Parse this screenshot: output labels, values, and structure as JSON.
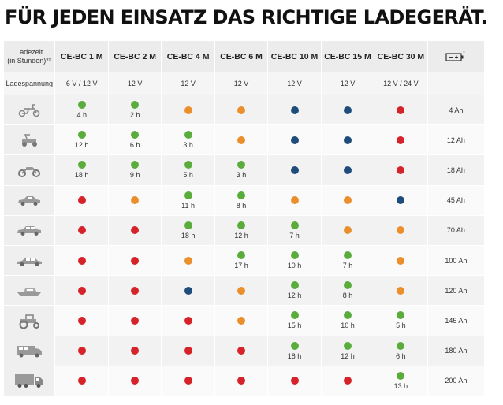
{
  "title": "FÜR JEDEN EINSATZ DAS RICHTIGE LADEGERÄT.",
  "header": {
    "corner_line1": "Ladezeit",
    "corner_line2": "(in Stunden)**",
    "models": [
      "CE-BC 1 M",
      "CE-BC 2 M",
      "CE-BC 4 M",
      "CE-BC 6 M",
      "CE-BC 10 M",
      "CE-BC 15 M",
      "CE-BC 30 M"
    ],
    "battery_icon": "battery-icon"
  },
  "voltage_row": {
    "label": "Ladespannung",
    "values": [
      "6 V / 12 V",
      "12 V",
      "12 V",
      "12 V",
      "12 V",
      "12 V",
      "12 V / 24 V"
    ]
  },
  "colors": {
    "green": "#5aad3c",
    "orange": "#eb8f2d",
    "blue": "#1e4d7c",
    "red": "#d6232a"
  },
  "rows": [
    {
      "icon": "scooter-icon",
      "capacity": "4 Ah",
      "cells": [
        {
          "c": "green",
          "t": "4 h"
        },
        {
          "c": "green",
          "t": "2 h"
        },
        {
          "c": "orange",
          "t": ""
        },
        {
          "c": "orange",
          "t": ""
        },
        {
          "c": "blue",
          "t": ""
        },
        {
          "c": "blue",
          "t": ""
        },
        {
          "c": "red",
          "t": ""
        }
      ]
    },
    {
      "icon": "lawnmower-icon",
      "capacity": "12 Ah",
      "cells": [
        {
          "c": "green",
          "t": "12 h"
        },
        {
          "c": "green",
          "t": "6 h"
        },
        {
          "c": "green",
          "t": "3 h"
        },
        {
          "c": "orange",
          "t": ""
        },
        {
          "c": "blue",
          "t": ""
        },
        {
          "c": "blue",
          "t": ""
        },
        {
          "c": "red",
          "t": ""
        }
      ]
    },
    {
      "icon": "motorcycle-icon",
      "capacity": "18 Ah",
      "cells": [
        {
          "c": "green",
          "t": "18 h"
        },
        {
          "c": "green",
          "t": "9 h"
        },
        {
          "c": "green",
          "t": "5 h"
        },
        {
          "c": "green",
          "t": "3 h"
        },
        {
          "c": "blue",
          "t": ""
        },
        {
          "c": "blue",
          "t": ""
        },
        {
          "c": "red",
          "t": ""
        }
      ]
    },
    {
      "icon": "small-car-icon",
      "capacity": "45 Ah",
      "cells": [
        {
          "c": "red",
          "t": ""
        },
        {
          "c": "orange",
          "t": ""
        },
        {
          "c": "green",
          "t": "11 h"
        },
        {
          "c": "green",
          "t": "8 h"
        },
        {
          "c": "orange",
          "t": ""
        },
        {
          "c": "orange",
          "t": ""
        },
        {
          "c": "blue",
          "t": ""
        }
      ]
    },
    {
      "icon": "car-icon",
      "capacity": "70 Ah",
      "cells": [
        {
          "c": "red",
          "t": ""
        },
        {
          "c": "red",
          "t": ""
        },
        {
          "c": "green",
          "t": "18 h"
        },
        {
          "c": "green",
          "t": "12 h"
        },
        {
          "c": "green",
          "t": "7 h"
        },
        {
          "c": "orange",
          "t": ""
        },
        {
          "c": "orange",
          "t": ""
        }
      ]
    },
    {
      "icon": "sedan-icon",
      "capacity": "100 Ah",
      "cells": [
        {
          "c": "red",
          "t": ""
        },
        {
          "c": "red",
          "t": ""
        },
        {
          "c": "orange",
          "t": ""
        },
        {
          "c": "green",
          "t": "17 h"
        },
        {
          "c": "green",
          "t": "10 h"
        },
        {
          "c": "green",
          "t": "7 h"
        },
        {
          "c": "orange",
          "t": ""
        }
      ]
    },
    {
      "icon": "boat-icon",
      "capacity": "120 Ah",
      "cells": [
        {
          "c": "red",
          "t": ""
        },
        {
          "c": "red",
          "t": ""
        },
        {
          "c": "blue",
          "t": ""
        },
        {
          "c": "orange",
          "t": ""
        },
        {
          "c": "green",
          "t": "12 h"
        },
        {
          "c": "green",
          "t": "8 h"
        },
        {
          "c": "orange",
          "t": ""
        }
      ]
    },
    {
      "icon": "tractor-icon",
      "capacity": "145 Ah",
      "cells": [
        {
          "c": "red",
          "t": ""
        },
        {
          "c": "red",
          "t": ""
        },
        {
          "c": "red",
          "t": ""
        },
        {
          "c": "orange",
          "t": ""
        },
        {
          "c": "green",
          "t": "15 h"
        },
        {
          "c": "green",
          "t": "10 h"
        },
        {
          "c": "green",
          "t": "5 h"
        }
      ]
    },
    {
      "icon": "camper-icon",
      "capacity": "180 Ah",
      "cells": [
        {
          "c": "red",
          "t": ""
        },
        {
          "c": "red",
          "t": ""
        },
        {
          "c": "red",
          "t": ""
        },
        {
          "c": "red",
          "t": ""
        },
        {
          "c": "green",
          "t": "18 h"
        },
        {
          "c": "green",
          "t": "12 h"
        },
        {
          "c": "green",
          "t": "6 h"
        }
      ]
    },
    {
      "icon": "truck-icon",
      "capacity": "200 Ah",
      "cells": [
        {
          "c": "red",
          "t": ""
        },
        {
          "c": "red",
          "t": ""
        },
        {
          "c": "red",
          "t": ""
        },
        {
          "c": "red",
          "t": ""
        },
        {
          "c": "red",
          "t": ""
        },
        {
          "c": "red",
          "t": ""
        },
        {
          "c": "green",
          "t": "13 h"
        }
      ]
    }
  ]
}
